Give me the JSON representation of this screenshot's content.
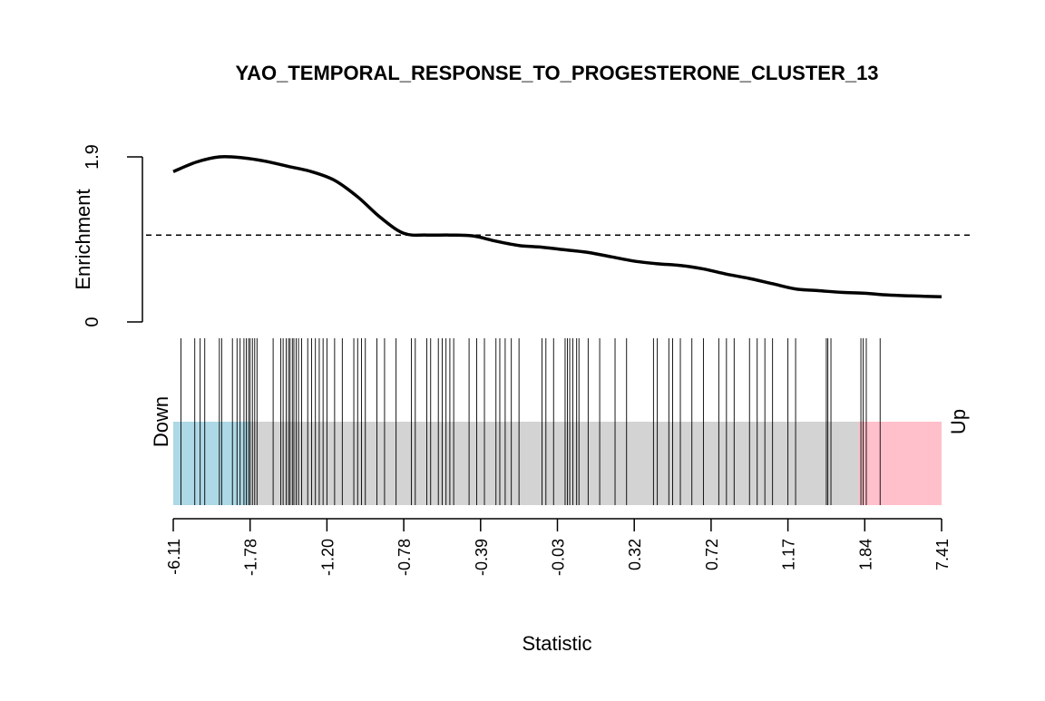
{
  "chart_data": {
    "type": "barcode-enrichment",
    "title": "YAO_TEMPORAL_RESPONSE_TO_PROGESTERONE_CLUSTER_13",
    "xlabel": "Statistic",
    "ylabel": "Enrichment",
    "y_ticks": [
      "0",
      "1.9"
    ],
    "ylim": [
      0,
      1.9
    ],
    "x_tick_labels": [
      "-6.11",
      "-1.78",
      "-1.20",
      "-0.78",
      "-0.39",
      "-0.03",
      "0.32",
      "0.72",
      "1.17",
      "1.84",
      "7.41"
    ],
    "down_label": "Down",
    "up_label": "Up",
    "colors": {
      "down_region": "#add8e6",
      "middle_region": "#d3d3d3",
      "up_region": "#ffc0cb",
      "curve": "#000000",
      "barcode": "#000000"
    },
    "down_region_fraction": 0.1,
    "up_region_fraction": 0.108,
    "reference_line_enrichment": 1.0,
    "enrichment_curve": {
      "rank_fraction": [
        0.0,
        0.03,
        0.06,
        0.09,
        0.12,
        0.15,
        0.18,
        0.21,
        0.24,
        0.27,
        0.3,
        0.33,
        0.36,
        0.39,
        0.42,
        0.45,
        0.48,
        0.51,
        0.54,
        0.57,
        0.6,
        0.63,
        0.66,
        0.69,
        0.72,
        0.75,
        0.78,
        0.81,
        0.84,
        0.87,
        0.9,
        0.93,
        0.96,
        1.0
      ],
      "enrichment": [
        1.73,
        1.84,
        1.9,
        1.89,
        1.85,
        1.79,
        1.73,
        1.63,
        1.44,
        1.2,
        1.02,
        1.0,
        1.0,
        0.99,
        0.93,
        0.88,
        0.86,
        0.83,
        0.8,
        0.75,
        0.7,
        0.67,
        0.65,
        0.61,
        0.55,
        0.5,
        0.44,
        0.38,
        0.36,
        0.34,
        0.33,
        0.31,
        0.3,
        0.29
      ]
    },
    "barcode_rank_fraction": [
      0.01,
      0.028,
      0.035,
      0.041,
      0.06,
      0.063,
      0.077,
      0.083,
      0.087,
      0.092,
      0.095,
      0.098,
      0.1,
      0.103,
      0.106,
      0.109,
      0.13,
      0.14,
      0.143,
      0.147,
      0.15,
      0.152,
      0.155,
      0.157,
      0.16,
      0.163,
      0.167,
      0.175,
      0.18,
      0.185,
      0.19,
      0.195,
      0.2,
      0.21,
      0.22,
      0.235,
      0.24,
      0.245,
      0.25,
      0.265,
      0.275,
      0.29,
      0.31,
      0.315,
      0.33,
      0.335,
      0.345,
      0.35,
      0.355,
      0.36,
      0.365,
      0.385,
      0.395,
      0.405,
      0.42,
      0.425,
      0.432,
      0.44,
      0.45,
      0.48,
      0.485,
      0.495,
      0.51,
      0.513,
      0.516,
      0.52,
      0.525,
      0.528,
      0.54,
      0.555,
      0.575,
      0.59,
      0.625,
      0.63,
      0.645,
      0.65,
      0.66,
      0.675,
      0.69,
      0.71,
      0.72,
      0.73,
      0.75,
      0.76,
      0.77,
      0.78,
      0.8,
      0.81,
      0.85,
      0.852,
      0.856,
      0.895,
      0.898,
      0.902,
      0.92
    ]
  }
}
